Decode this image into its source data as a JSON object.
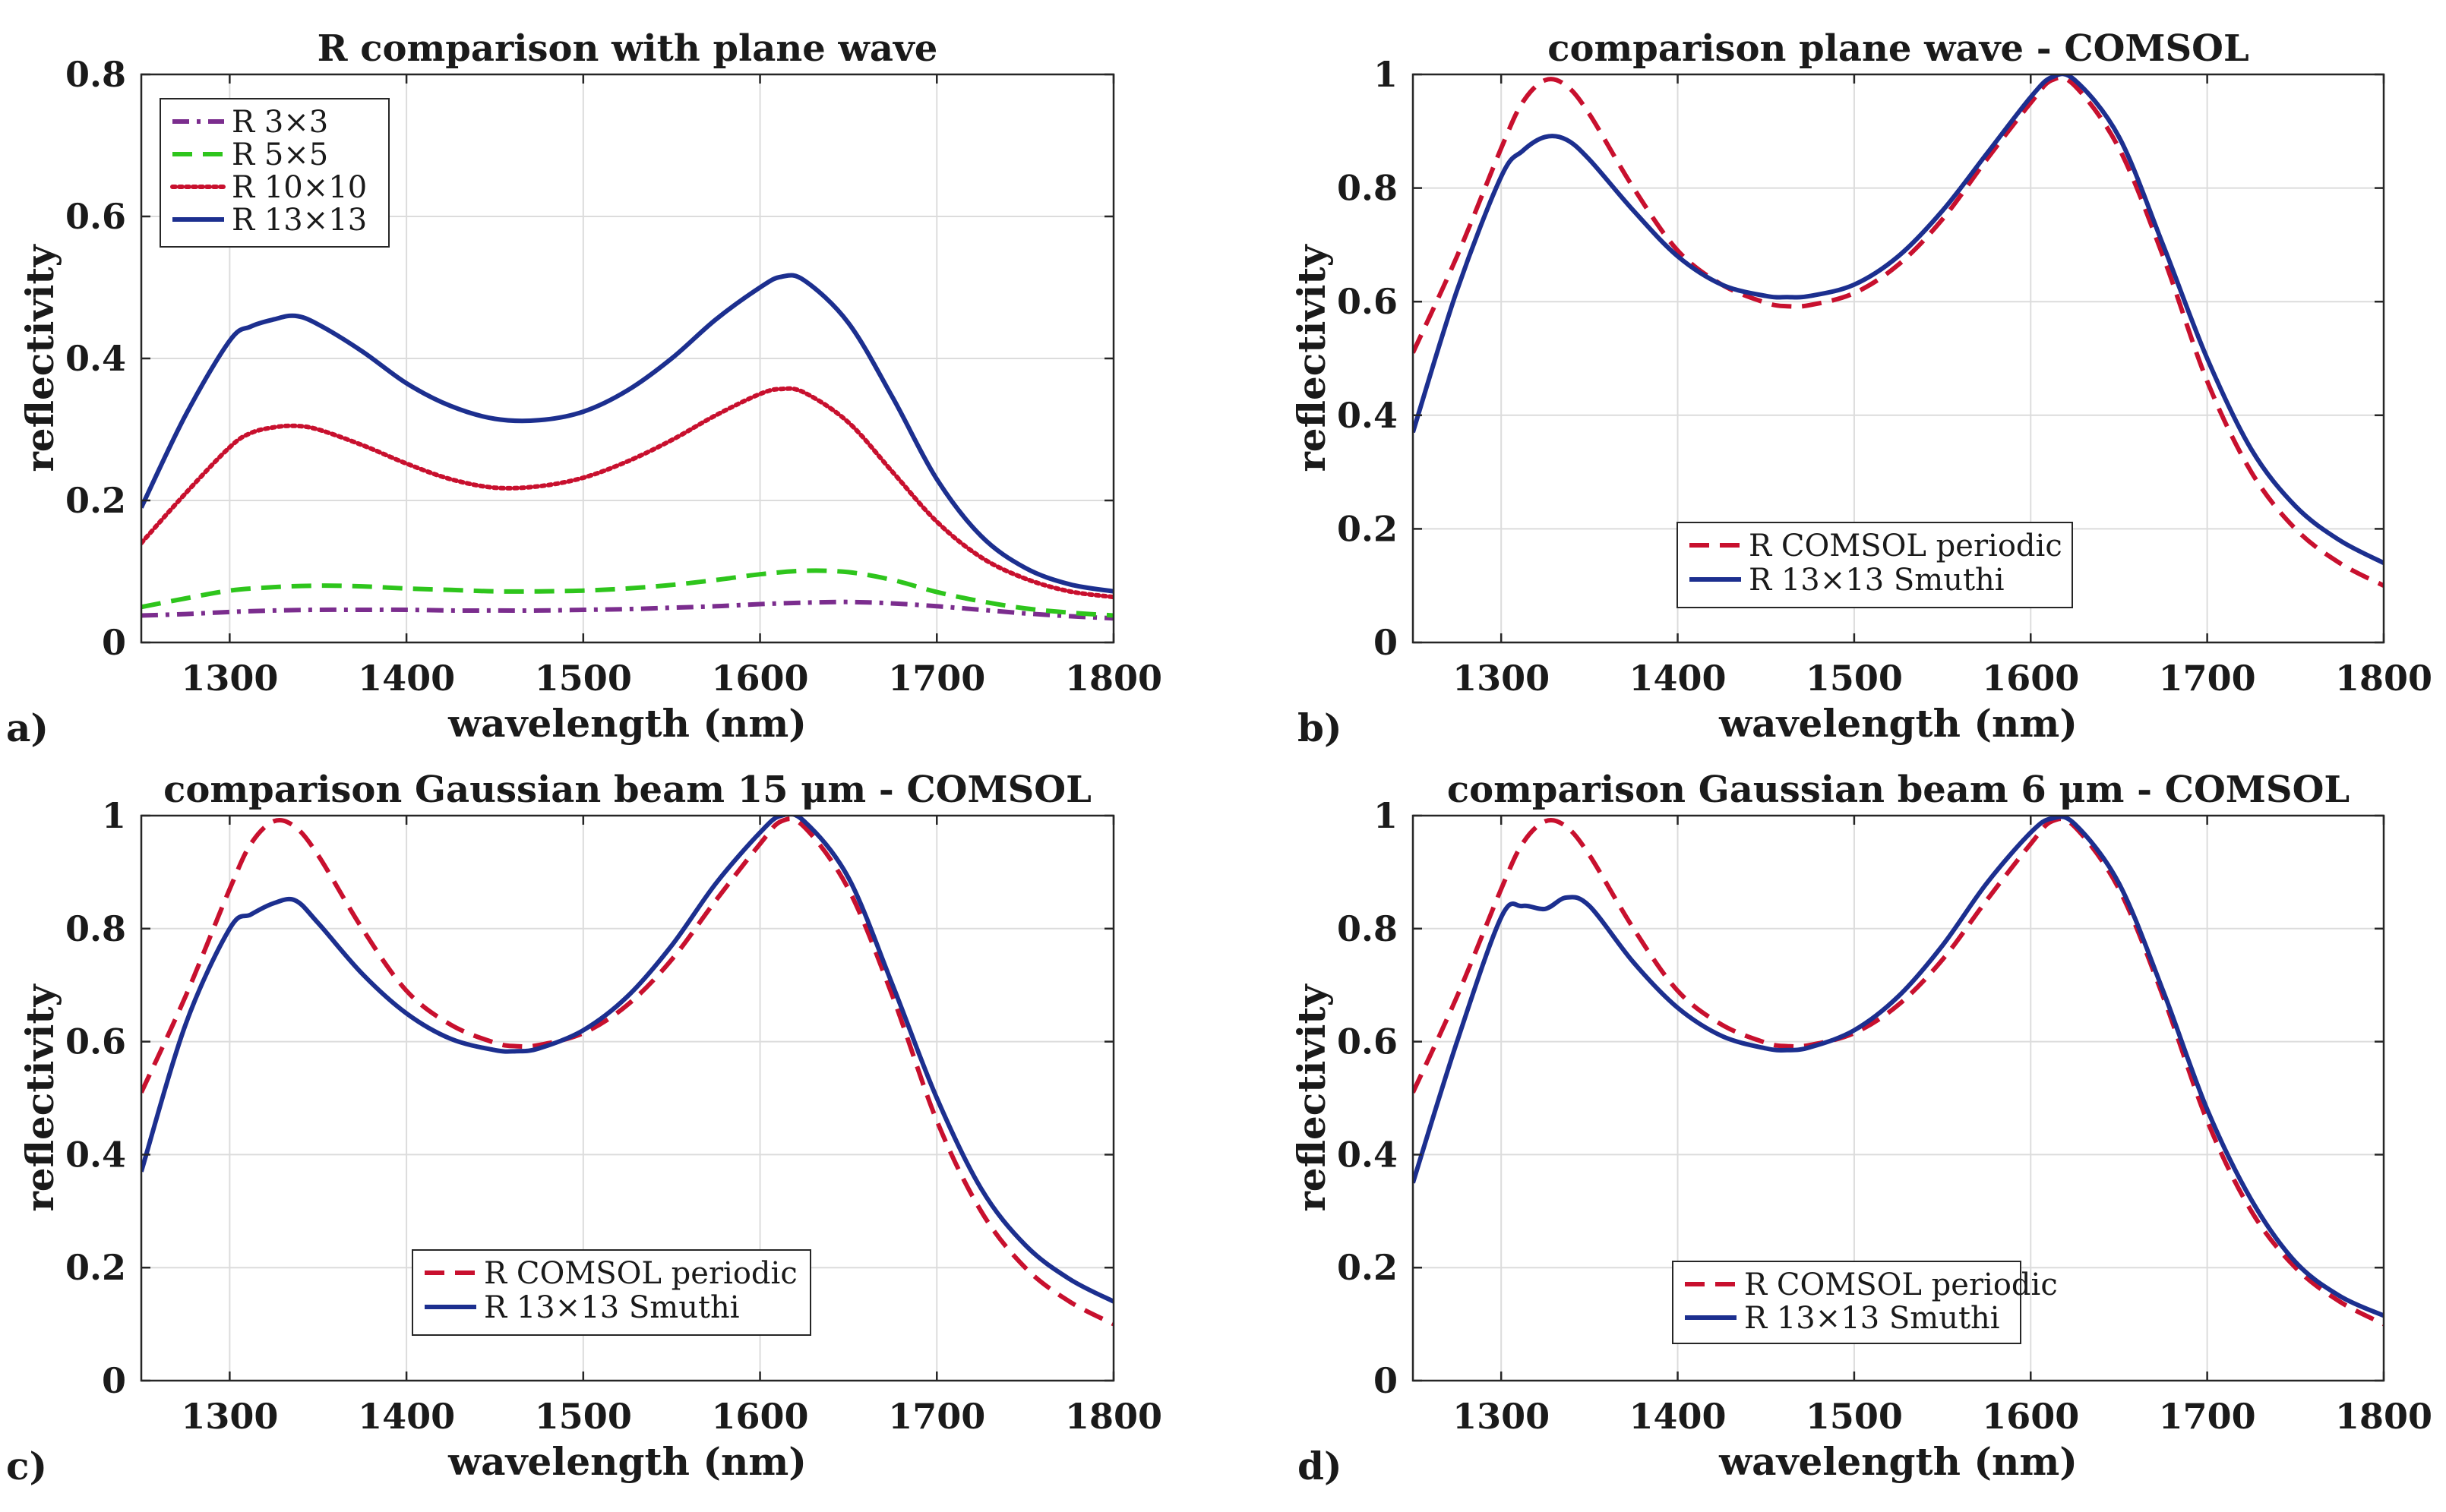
{
  "chart_data": [
    {
      "type": "line",
      "panel_label": "a)",
      "title": "R comparison with plane wave",
      "xlabel": "wavelength (nm)",
      "ylabel": "reflectivity",
      "xlim": [
        1250,
        1800
      ],
      "ylim": [
        0,
        0.8
      ],
      "xticks": [
        1300,
        1400,
        1500,
        1600,
        1700,
        1800
      ],
      "xtick_labels": [
        "1300",
        "1400",
        "1500",
        "1600",
        "1700",
        "1800"
      ],
      "yticks": [
        0,
        0.2,
        0.4,
        0.6,
        0.8
      ],
      "ytick_labels": [
        "0",
        "0.2",
        "0.4",
        "0.6",
        "0.8"
      ],
      "grid": true,
      "legend_position": "top-left",
      "series": [
        {
          "name": "R 3×3",
          "color": "#7b2d8e",
          "style": "dashdot",
          "x": [
            1250,
            1275,
            1300,
            1325,
            1350,
            1375,
            1400,
            1425,
            1450,
            1475,
            1500,
            1525,
            1550,
            1575,
            1600,
            1625,
            1650,
            1675,
            1700,
            1725,
            1750,
            1775,
            1800
          ],
          "y": [
            0.038,
            0.04,
            0.043,
            0.045,
            0.046,
            0.046,
            0.046,
            0.045,
            0.045,
            0.045,
            0.046,
            0.047,
            0.049,
            0.051,
            0.054,
            0.056,
            0.057,
            0.055,
            0.051,
            0.046,
            0.041,
            0.037,
            0.034
          ]
        },
        {
          "name": "R 5×5",
          "color": "#2ec51c",
          "style": "dashed",
          "x": [
            1250,
            1275,
            1300,
            1325,
            1350,
            1375,
            1400,
            1425,
            1450,
            1475,
            1500,
            1525,
            1550,
            1575,
            1600,
            1625,
            1650,
            1675,
            1700,
            1725,
            1750,
            1775,
            1800
          ],
          "y": [
            0.05,
            0.062,
            0.073,
            0.078,
            0.08,
            0.079,
            0.076,
            0.074,
            0.072,
            0.072,
            0.073,
            0.076,
            0.081,
            0.088,
            0.096,
            0.101,
            0.099,
            0.088,
            0.071,
            0.058,
            0.048,
            0.042,
            0.038
          ]
        },
        {
          "name": "R 10×10",
          "color": "#c8102e",
          "style": "dotted",
          "x": [
            1250,
            1275,
            1300,
            1312,
            1325,
            1337,
            1350,
            1375,
            1400,
            1425,
            1450,
            1475,
            1500,
            1525,
            1550,
            1575,
            1600,
            1612,
            1625,
            1650,
            1675,
            1700,
            1725,
            1750,
            1775,
            1800
          ],
          "y": [
            0.14,
            0.21,
            0.275,
            0.295,
            0.303,
            0.305,
            0.3,
            0.278,
            0.252,
            0.23,
            0.218,
            0.22,
            0.232,
            0.255,
            0.285,
            0.32,
            0.35,
            0.357,
            0.352,
            0.31,
            0.24,
            0.17,
            0.12,
            0.09,
            0.072,
            0.064
          ]
        },
        {
          "name": "R 13×13",
          "color": "#1c2f8f",
          "style": "solid",
          "x": [
            1250,
            1275,
            1300,
            1312,
            1325,
            1337,
            1350,
            1375,
            1400,
            1425,
            1450,
            1475,
            1500,
            1525,
            1550,
            1575,
            1600,
            1612,
            1625,
            1650,
            1675,
            1700,
            1725,
            1750,
            1775,
            1800
          ],
          "y": [
            0.19,
            0.32,
            0.425,
            0.445,
            0.455,
            0.46,
            0.448,
            0.41,
            0.365,
            0.333,
            0.315,
            0.313,
            0.325,
            0.355,
            0.4,
            0.455,
            0.5,
            0.515,
            0.51,
            0.45,
            0.345,
            0.23,
            0.15,
            0.105,
            0.082,
            0.072
          ]
        }
      ]
    },
    {
      "type": "line",
      "panel_label": "b)",
      "title": "comparison plane wave - COMSOL",
      "xlabel": "wavelength (nm)",
      "ylabel": "reflectivity",
      "xlim": [
        1250,
        1800
      ],
      "ylim": [
        0,
        1
      ],
      "xticks": [
        1300,
        1400,
        1500,
        1600,
        1700,
        1800
      ],
      "xtick_labels": [
        "1300",
        "1400",
        "1500",
        "1600",
        "1700",
        "1800"
      ],
      "yticks": [
        0,
        0.2,
        0.4,
        0.6,
        0.8,
        1
      ],
      "ytick_labels": [
        "0",
        "0.2",
        "0.4",
        "0.6",
        "0.8",
        "1"
      ],
      "grid": true,
      "legend_position": "bottom-center",
      "series": [
        {
          "name": "R COMSOL periodic",
          "color": "#c8102e",
          "style": "dashed",
          "x": [
            1250,
            1275,
            1300,
            1312,
            1325,
            1337,
            1350,
            1375,
            1400,
            1425,
            1450,
            1462,
            1475,
            1500,
            1525,
            1550,
            1575,
            1600,
            1612,
            1625,
            1650,
            1675,
            1700,
            1725,
            1750,
            1775,
            1800
          ],
          "y": [
            0.51,
            0.68,
            0.87,
            0.95,
            0.99,
            0.98,
            0.93,
            0.8,
            0.69,
            0.63,
            0.598,
            0.592,
            0.594,
            0.615,
            0.665,
            0.745,
            0.85,
            0.95,
            0.99,
            0.98,
            0.87,
            0.68,
            0.46,
            0.3,
            0.2,
            0.14,
            0.1
          ]
        },
        {
          "name": "R 13×13 Smuthi",
          "color": "#1c2f8f",
          "style": "solid",
          "x": [
            1250,
            1275,
            1300,
            1312,
            1325,
            1337,
            1350,
            1375,
            1400,
            1425,
            1450,
            1462,
            1475,
            1500,
            1525,
            1550,
            1575,
            1600,
            1612,
            1625,
            1650,
            1675,
            1700,
            1725,
            1750,
            1775,
            1800
          ],
          "y": [
            0.37,
            0.62,
            0.82,
            0.865,
            0.89,
            0.885,
            0.85,
            0.76,
            0.68,
            0.63,
            0.61,
            0.608,
            0.61,
            0.63,
            0.68,
            0.76,
            0.86,
            0.96,
            0.995,
            0.99,
            0.89,
            0.7,
            0.5,
            0.34,
            0.24,
            0.18,
            0.14
          ]
        }
      ]
    },
    {
      "type": "line",
      "panel_label": "c)",
      "title": "comparison Gaussian beam 15 μm - COMSOL",
      "xlabel": "wavelength (nm)",
      "ylabel": "reflectivity",
      "xlim": [
        1250,
        1800
      ],
      "ylim": [
        0,
        1
      ],
      "xticks": [
        1300,
        1400,
        1500,
        1600,
        1700,
        1800
      ],
      "xtick_labels": [
        "1300",
        "1400",
        "1500",
        "1600",
        "1700",
        "1800"
      ],
      "yticks": [
        0,
        0.2,
        0.4,
        0.6,
        0.8,
        1
      ],
      "ytick_labels": [
        "0",
        "0.2",
        "0.4",
        "0.6",
        "0.8",
        "1"
      ],
      "grid": true,
      "legend_position": "bottom-center",
      "series": [
        {
          "name": "R COMSOL periodic",
          "color": "#c8102e",
          "style": "dashed",
          "x": [
            1250,
            1275,
            1300,
            1312,
            1325,
            1337,
            1350,
            1375,
            1400,
            1425,
            1450,
            1462,
            1475,
            1500,
            1525,
            1550,
            1575,
            1600,
            1612,
            1625,
            1650,
            1675,
            1700,
            1725,
            1750,
            1775,
            1800
          ],
          "y": [
            0.51,
            0.68,
            0.87,
            0.95,
            0.99,
            0.98,
            0.93,
            0.8,
            0.69,
            0.63,
            0.598,
            0.592,
            0.594,
            0.615,
            0.665,
            0.745,
            0.85,
            0.95,
            0.99,
            0.98,
            0.87,
            0.68,
            0.46,
            0.3,
            0.2,
            0.14,
            0.1
          ]
        },
        {
          "name": "R 13×13 Smuthi",
          "color": "#1c2f8f",
          "style": "solid",
          "x": [
            1250,
            1275,
            1300,
            1312,
            1325,
            1337,
            1350,
            1375,
            1400,
            1425,
            1450,
            1462,
            1475,
            1500,
            1525,
            1550,
            1575,
            1600,
            1612,
            1625,
            1650,
            1675,
            1700,
            1725,
            1750,
            1775,
            1800
          ],
          "y": [
            0.37,
            0.63,
            0.8,
            0.825,
            0.845,
            0.85,
            0.81,
            0.72,
            0.65,
            0.605,
            0.585,
            0.583,
            0.588,
            0.62,
            0.68,
            0.77,
            0.88,
            0.97,
            1.0,
            0.99,
            0.89,
            0.7,
            0.5,
            0.34,
            0.24,
            0.18,
            0.14
          ]
        }
      ]
    },
    {
      "type": "line",
      "panel_label": "d)",
      "title": "comparison Gaussian beam 6 μm - COMSOL",
      "xlabel": "wavelength (nm)",
      "ylabel": "reflectivity",
      "xlim": [
        1250,
        1800
      ],
      "ylim": [
        0,
        1
      ],
      "xticks": [
        1300,
        1400,
        1500,
        1600,
        1700,
        1800
      ],
      "xtick_labels": [
        "1300",
        "1400",
        "1500",
        "1600",
        "1700",
        "1800"
      ],
      "yticks": [
        0,
        0.2,
        0.4,
        0.6,
        0.8,
        1
      ],
      "ytick_labels": [
        "0",
        "0.2",
        "0.4",
        "0.6",
        "0.8",
        "1"
      ],
      "grid": true,
      "legend_position": "bottom-center",
      "series": [
        {
          "name": "R COMSOL periodic",
          "color": "#c8102e",
          "style": "dashed",
          "x": [
            1250,
            1275,
            1300,
            1312,
            1325,
            1337,
            1350,
            1375,
            1400,
            1425,
            1450,
            1462,
            1475,
            1500,
            1525,
            1550,
            1575,
            1600,
            1612,
            1625,
            1650,
            1675,
            1700,
            1725,
            1750,
            1775,
            1800
          ],
          "y": [
            0.51,
            0.68,
            0.87,
            0.95,
            0.99,
            0.98,
            0.93,
            0.8,
            0.69,
            0.63,
            0.598,
            0.592,
            0.594,
            0.615,
            0.665,
            0.745,
            0.85,
            0.95,
            0.99,
            0.98,
            0.87,
            0.68,
            0.46,
            0.3,
            0.2,
            0.14,
            0.1
          ]
        },
        {
          "name": "R 13×13 Smuthi",
          "color": "#1c2f8f",
          "style": "solid",
          "x": [
            1250,
            1275,
            1300,
            1312,
            1325,
            1337,
            1350,
            1375,
            1400,
            1425,
            1450,
            1462,
            1475,
            1500,
            1525,
            1550,
            1575,
            1600,
            1612,
            1625,
            1650,
            1675,
            1700,
            1725,
            1750,
            1775,
            1800
          ],
          "y": [
            0.35,
            0.6,
            0.82,
            0.84,
            0.835,
            0.855,
            0.84,
            0.74,
            0.66,
            0.61,
            0.588,
            0.585,
            0.59,
            0.62,
            0.68,
            0.77,
            0.88,
            0.97,
            0.995,
            0.985,
            0.88,
            0.69,
            0.48,
            0.32,
            0.21,
            0.15,
            0.115
          ]
        }
      ]
    }
  ]
}
